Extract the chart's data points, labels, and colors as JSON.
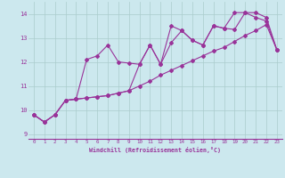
{
  "xlabel": "Windchill (Refroidissement éolien,°C)",
  "x_ticks": [
    0,
    1,
    2,
    3,
    4,
    5,
    6,
    7,
    8,
    9,
    10,
    11,
    12,
    13,
    14,
    15,
    16,
    17,
    18,
    19,
    20,
    21,
    22,
    23
  ],
  "ylim": [
    8.8,
    14.5
  ],
  "xlim": [
    -0.5,
    23.5
  ],
  "yticks": [
    9,
    10,
    11,
    12,
    13,
    14
  ],
  "bg_color": "#cce8ee",
  "line_color": "#993399",
  "grid_color": "#aacccc",
  "series1_y": [
    9.8,
    9.5,
    9.8,
    10.4,
    10.45,
    12.1,
    12.25,
    12.7,
    12.0,
    11.95,
    11.9,
    12.7,
    11.9,
    13.5,
    13.3,
    12.9,
    12.7,
    13.5,
    13.4,
    13.35,
    14.05,
    14.05,
    13.85,
    12.5
  ],
  "series2_y": [
    9.8,
    9.5,
    9.8,
    10.4,
    10.45,
    10.5,
    10.55,
    10.6,
    10.7,
    10.8,
    11.0,
    11.2,
    11.45,
    11.65,
    11.85,
    12.05,
    12.25,
    12.45,
    12.6,
    12.85,
    13.1,
    13.3,
    13.55,
    12.5
  ],
  "series3_y": [
    9.8,
    9.5,
    9.8,
    10.4,
    10.45,
    10.5,
    10.55,
    10.6,
    10.7,
    10.8,
    11.9,
    12.7,
    11.9,
    12.8,
    13.3,
    12.9,
    12.7,
    13.5,
    13.4,
    14.05,
    14.05,
    13.85,
    13.7,
    12.5
  ]
}
